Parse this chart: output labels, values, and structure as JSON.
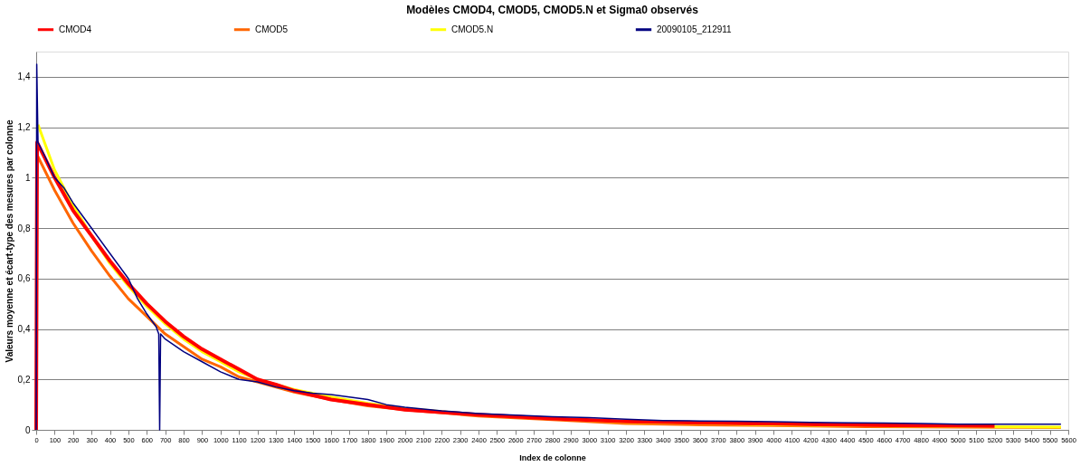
{
  "chart_data": {
    "type": "line",
    "title": "Modèles CMOD4, CMOD5, CMOD5.N et Sigma0 observés",
    "xlabel": "Index de colonne",
    "ylabel": "Valeurs moyenne et écart-type des mesures par colonne",
    "xlim": [
      0,
      5600
    ],
    "xticks": [
      0,
      100,
      200,
      300,
      400,
      500,
      600,
      700,
      800,
      900,
      1000,
      1100,
      1200,
      1300,
      1400,
      1500,
      1600,
      1700,
      1800,
      1900,
      2000,
      2100,
      2200,
      2300,
      2400,
      2500,
      2600,
      2700,
      2800,
      2900,
      3000,
      3100,
      3200,
      3300,
      3400,
      3500,
      3600,
      3700,
      3800,
      3900,
      4000,
      4100,
      4200,
      4300,
      4400,
      4500,
      4600,
      4700,
      4800,
      4900,
      5000,
      5100,
      5200,
      5300,
      5400,
      5500,
      5600
    ],
    "ylim": [
      0,
      1.5
    ],
    "yticks": [
      0,
      {
        "value": 0.2,
        "label": "0,2"
      },
      {
        "value": 0.4,
        "label": "0,4"
      },
      {
        "value": 0.6,
        "label": "0,6"
      },
      {
        "value": 0.8,
        "label": "0,8"
      },
      1,
      {
        "value": 1.2,
        "label": "1,2"
      },
      {
        "value": 1.4,
        "label": "1,4"
      }
    ],
    "grid": "y",
    "legend": "top",
    "marker": "none",
    "line_style": "solid",
    "series": [
      {
        "name": "CMOD4",
        "color": "#ff0000",
        "x": [
          0,
          5,
          100,
          200,
          300,
          400,
          500,
          600,
          700,
          800,
          900,
          1000,
          1100,
          1200,
          1300,
          1400,
          1600,
          1800,
          2000,
          2400,
          2800,
          3200,
          3600,
          4000,
          4500,
          5000,
          5200
        ],
        "values": [
          0,
          1.14,
          1.0,
          0.87,
          0.77,
          0.67,
          0.58,
          0.5,
          0.43,
          0.37,
          0.32,
          0.28,
          0.24,
          0.2,
          0.18,
          0.155,
          0.12,
          0.1,
          0.08,
          0.06,
          0.045,
          0.033,
          0.028,
          0.024,
          0.019,
          0.016,
          0.015
        ]
      },
      {
        "name": "CMOD5",
        "color": "#ff6600",
        "x": [
          5,
          100,
          200,
          300,
          400,
          500,
          600,
          700,
          800,
          900,
          1000,
          1100,
          1200,
          1400,
          1600,
          1800,
          2000,
          2400,
          2800,
          3200,
          3600,
          4000,
          4500,
          5000,
          5560
        ],
        "values": [
          1.09,
          0.95,
          0.82,
          0.71,
          0.61,
          0.52,
          0.45,
          0.38,
          0.33,
          0.28,
          0.25,
          0.21,
          0.19,
          0.15,
          0.12,
          0.095,
          0.08,
          0.055,
          0.04,
          0.025,
          0.02,
          0.017,
          0.013,
          0.011,
          0.009
        ]
      },
      {
        "name": "CMOD5.N",
        "color": "#ffff00",
        "x": [
          10,
          100,
          200,
          300,
          400,
          500,
          600,
          700,
          800,
          900,
          1000,
          1100,
          1200,
          1400,
          1600,
          1800,
          2000,
          2400,
          2800,
          3200,
          3600,
          4000,
          4500,
          5000,
          5560
        ],
        "values": [
          1.21,
          1.03,
          0.89,
          0.77,
          0.66,
          0.57,
          0.49,
          0.42,
          0.36,
          0.31,
          0.27,
          0.23,
          0.2,
          0.16,
          0.13,
          0.105,
          0.085,
          0.06,
          0.045,
          0.03,
          0.025,
          0.02,
          0.016,
          0.013,
          0.011
        ]
      },
      {
        "name": "20090105_212911",
        "color": "#000080",
        "x": [
          0,
          3,
          10,
          50,
          100,
          150,
          200,
          300,
          400,
          500,
          550,
          600,
          650,
          665,
          670,
          675,
          700,
          800,
          900,
          1000,
          1100,
          1200,
          1300,
          1400,
          1500,
          1600,
          1700,
          1800,
          1900,
          2000,
          2200,
          2400,
          2600,
          2800,
          3000,
          3200,
          3400,
          3600,
          3800,
          4000,
          4200,
          4400,
          4600,
          4800,
          5000,
          5200,
          5400,
          5560
        ],
        "values": [
          0,
          1.45,
          1.14,
          1.08,
          1.0,
          0.96,
          0.9,
          0.8,
          0.7,
          0.6,
          0.52,
          0.46,
          0.41,
          0.38,
          0,
          0.38,
          0.36,
          0.31,
          0.27,
          0.23,
          0.2,
          0.19,
          0.17,
          0.155,
          0.145,
          0.14,
          0.13,
          0.12,
          0.1,
          0.09,
          0.075,
          0.065,
          0.058,
          0.052,
          0.048,
          0.042,
          0.037,
          0.035,
          0.034,
          0.032,
          0.03,
          0.028,
          0.027,
          0.025,
          0.022,
          0.022,
          0.022,
          0.022
        ]
      }
    ]
  }
}
